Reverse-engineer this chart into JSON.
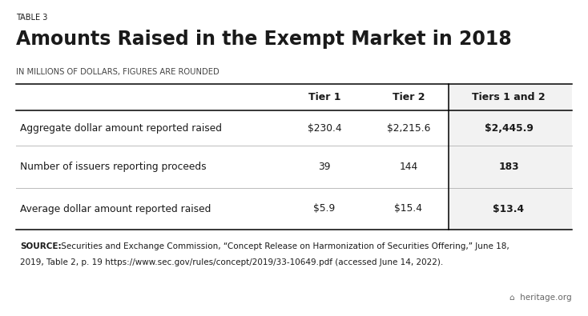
{
  "table_label": "TABLE 3",
  "title": "Amounts Raised in the Exempt Market in 2018",
  "subtitle": "IN MILLIONS OF DOLLARS, FIGURES ARE ROUNDED",
  "col_headers": [
    "",
    "Tier 1",
    "Tier 2",
    "Tiers 1 and 2"
  ],
  "rows": [
    [
      "Aggregate dollar amount reported raised",
      "$230.4",
      "$2,215.6",
      "$2,445.9"
    ],
    [
      "Number of issuers reporting proceeds",
      "39",
      "144",
      "183"
    ],
    [
      "Average dollar amount reported raised",
      "$5.9",
      "$15.4",
      "$13.4"
    ]
  ],
  "source_bold": "SOURCE:",
  "source_line1": " Securities and Exchange Commission, “Concept Release on Harmonization of Securities Offering,” June 18,",
  "source_line2": "2019, Table 2, p. 19 https://www.sec.gov/rules/concept/2019/33-10649.pdf (accessed June 14, 2022).",
  "watermark": "heritage.org",
  "bg_color": "#ffffff",
  "text_color": "#1a1a1a",
  "last_col_bg": "#f0f0f0"
}
